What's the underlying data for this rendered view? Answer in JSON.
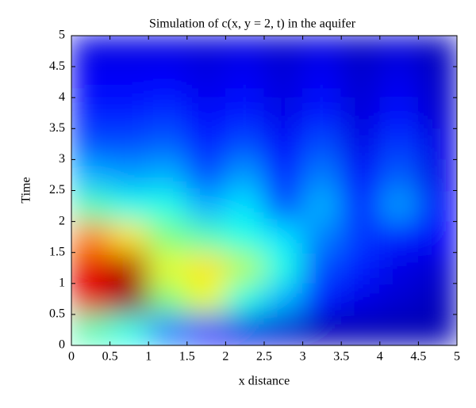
{
  "chart_data": {
    "type": "heatmap",
    "title": "Simulation of c(x, y = 2, t) in the aquifer",
    "x_label": "x distance",
    "y_label": "Time",
    "x": [
      0.25,
      0.75,
      1.25,
      1.75,
      2.25,
      2.75,
      3.25,
      3.75,
      4.25,
      4.75
    ],
    "y": [
      0.25,
      0.75,
      1.25,
      1.75,
      2.25,
      2.75,
      3.25,
      3.75,
      4.25,
      4.75
    ],
    "z": [
      [
        0.45,
        0.4,
        0.25,
        0.15,
        0.1,
        0.08,
        0.05,
        0.05,
        0.05,
        0.05
      ],
      [
        0.9,
        0.98,
        0.5,
        0.6,
        0.4,
        0.3,
        0.15,
        0.1,
        0.08,
        0.06
      ],
      [
        0.9,
        0.95,
        0.6,
        0.65,
        0.55,
        0.4,
        0.2,
        0.15,
        0.1,
        0.08
      ],
      [
        0.75,
        0.65,
        0.5,
        0.45,
        0.4,
        0.35,
        0.25,
        0.18,
        0.15,
        0.12
      ],
      [
        0.45,
        0.4,
        0.4,
        0.3,
        0.35,
        0.2,
        0.3,
        0.15,
        0.28,
        0.12
      ],
      [
        0.3,
        0.28,
        0.3,
        0.2,
        0.28,
        0.15,
        0.25,
        0.12,
        0.22,
        0.1
      ],
      [
        0.2,
        0.2,
        0.22,
        0.15,
        0.2,
        0.12,
        0.2,
        0.1,
        0.18,
        0.1
      ],
      [
        0.15,
        0.15,
        0.17,
        0.12,
        0.15,
        0.1,
        0.15,
        0.09,
        0.14,
        0.08
      ],
      [
        0.12,
        0.12,
        0.13,
        0.1,
        0.12,
        0.09,
        0.12,
        0.08,
        0.11,
        0.07
      ],
      [
        0.1,
        0.1,
        0.1,
        0.09,
        0.1,
        0.08,
        0.1,
        0.07,
        0.09,
        0.06
      ]
    ],
    "colormap": "jet",
    "xlim": [
      0,
      5
    ],
    "ylim": [
      0,
      5
    ],
    "xticks": [
      0,
      0.5,
      1,
      1.5,
      2,
      2.5,
      3,
      3.5,
      4,
      4.5,
      5
    ],
    "yticks": [
      0,
      0.5,
      1,
      1.5,
      2,
      2.5,
      3,
      3.5,
      4,
      4.5,
      5
    ]
  }
}
